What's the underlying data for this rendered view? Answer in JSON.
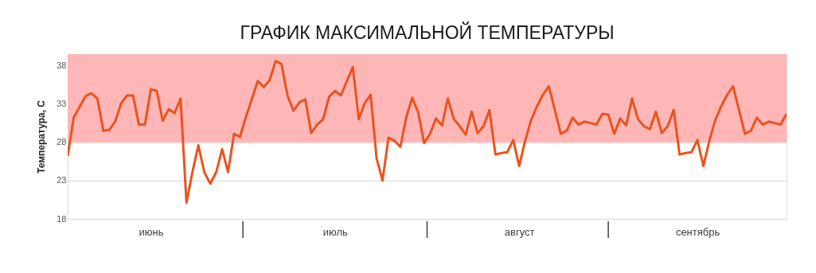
{
  "chart_data": {
    "type": "line",
    "title": "ГРАФИК МАКСИМАЛЬНОЙ ТЕМПЕРАТУРЫ",
    "ylabel": "Температура, С",
    "categories": [
      null,
      null,
      null,
      null,
      null,
      null,
      null,
      null,
      null,
      null,
      null,
      null,
      null,
      null,
      "июнь",
      null,
      null,
      null,
      null,
      null,
      null,
      null,
      null,
      null,
      null,
      null,
      null,
      null,
      null,
      null,
      null,
      null,
      null,
      null,
      null,
      null,
      null,
      null,
      null,
      null,
      null,
      null,
      null,
      null,
      null,
      "июль",
      null,
      null,
      null,
      null,
      null,
      null,
      null,
      null,
      null,
      null,
      null,
      null,
      null,
      null,
      null,
      null,
      null,
      null,
      null,
      null,
      null,
      null,
      null,
      null,
      null,
      null,
      null,
      null,
      null,
      null,
      "август",
      null,
      null,
      null,
      null,
      null,
      null,
      null,
      null,
      null,
      null,
      null,
      null,
      null,
      null,
      null,
      null,
      null,
      null,
      null,
      null,
      null,
      null,
      null,
      null,
      null,
      null,
      null,
      null,
      null,
      "сентябрь",
      null,
      null,
      null,
      null,
      null,
      null,
      null,
      null,
      null,
      null,
      null,
      null,
      null,
      null,
      null
    ],
    "series": [
      {
        "color": "#e9541f",
        "values": [
          26.2,
          31.2,
          32.6,
          34.0,
          34.4,
          33.7,
          29.5,
          29.6,
          30.7,
          33.1,
          34.1,
          34.1,
          30.3,
          30.3,
          34.9,
          34.7,
          30.8,
          32.3,
          31.8,
          33.7,
          20.1,
          24.1,
          27.6,
          24.1,
          22.6,
          24.1,
          27.1,
          24.1,
          29.1,
          28.7,
          31.3,
          33.6,
          36.0,
          35.2,
          36.1,
          38.6,
          38.2,
          34.1,
          32.1,
          33.2,
          33.6,
          29.2,
          30.3,
          31.0,
          33.9,
          34.7,
          34.1,
          36.0,
          37.8,
          31.0,
          33.1,
          34.2,
          25.9,
          23.0,
          28.6,
          28.2,
          27.4,
          31.3,
          33.8,
          31.9,
          27.9,
          29.1,
          31.1,
          30.2,
          33.7,
          31.0,
          30.1,
          29.0,
          32.0,
          29.2,
          30.1,
          32.2,
          26.4,
          26.6,
          26.7,
          28.3,
          24.9,
          28.2,
          30.9,
          32.7,
          34.2,
          35.3,
          32.2,
          29.1,
          29.5,
          31.2,
          30.3,
          30.7,
          30.5,
          30.3,
          31.7,
          31.6,
          29.1,
          31.1,
          30.2,
          33.7,
          31.0,
          30.1,
          29.7,
          32.0,
          29.2,
          30.1,
          32.2,
          26.4,
          26.6,
          26.7,
          28.3,
          24.9,
          28.2,
          30.9,
          32.7,
          34.2,
          35.3,
          32.2,
          29.1,
          29.5,
          31.2,
          30.3,
          30.7,
          30.5,
          30.3,
          31.7
        ]
      }
    ],
    "ylim": [
      18,
      39.5
    ],
    "yticks": [
      18,
      23,
      28,
      33,
      38
    ],
    "bands": [
      {
        "axis": "y",
        "from": 28,
        "to": 39.5,
        "color": "#ffb6b6"
      }
    ],
    "grid": "y",
    "legend": false,
    "line_style": "solid",
    "marker": "none"
  }
}
